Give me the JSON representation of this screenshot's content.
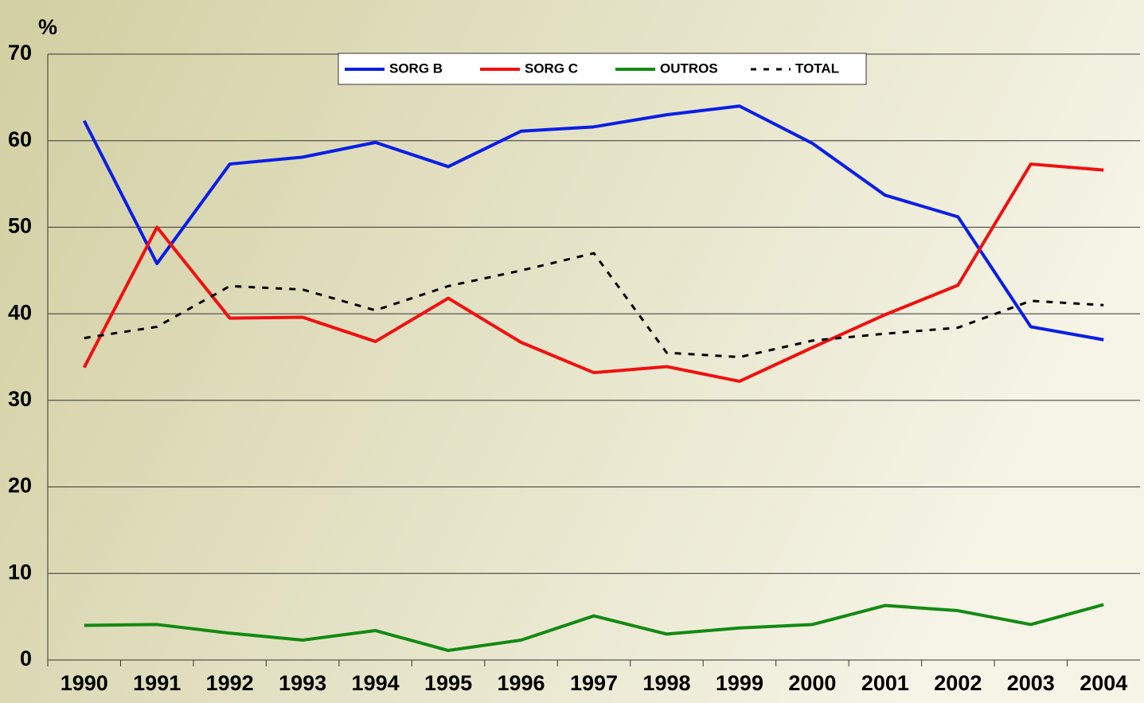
{
  "chart_data": {
    "type": "line",
    "y_label": "%",
    "categories": [
      "1990",
      "1991",
      "1992",
      "1993",
      "1994",
      "1995",
      "1996",
      "1997",
      "1998",
      "1999",
      "2000",
      "2001",
      "2002",
      "2003",
      "2004"
    ],
    "series": [
      {
        "name": "SORG B",
        "color": "#0a1ee6",
        "values": [
          62.3,
          45.8,
          57.3,
          58.1,
          59.8,
          57.0,
          61.1,
          61.6,
          63.0,
          64.0,
          59.7,
          53.7,
          51.2,
          38.5,
          37.0
        ]
      },
      {
        "name": "SORG C",
        "color": "#f01010",
        "values": [
          33.8,
          50.0,
          39.5,
          39.6,
          36.8,
          41.8,
          36.7,
          33.2,
          33.9,
          32.2,
          36.1,
          39.9,
          43.3,
          57.3,
          56.6
        ]
      },
      {
        "name": "OUTROS",
        "color": "#138a13",
        "values": [
          4.0,
          4.1,
          3.1,
          2.3,
          3.4,
          1.1,
          2.3,
          5.1,
          3.0,
          3.7,
          4.1,
          6.3,
          5.7,
          4.1,
          6.4
        ]
      },
      {
        "name": "TOTAL",
        "color": "#000000",
        "dashed": true,
        "values": [
          37.2,
          38.5,
          43.2,
          42.8,
          40.4,
          43.2,
          45.0,
          47.0,
          35.5,
          35.0,
          36.9,
          37.7,
          38.4,
          41.5,
          41.0
        ]
      }
    ],
    "ylim": [
      0,
      70
    ],
    "yticks": [
      0,
      10,
      20,
      30,
      40,
      50,
      60,
      70
    ],
    "grid": true,
    "legend": "top"
  }
}
